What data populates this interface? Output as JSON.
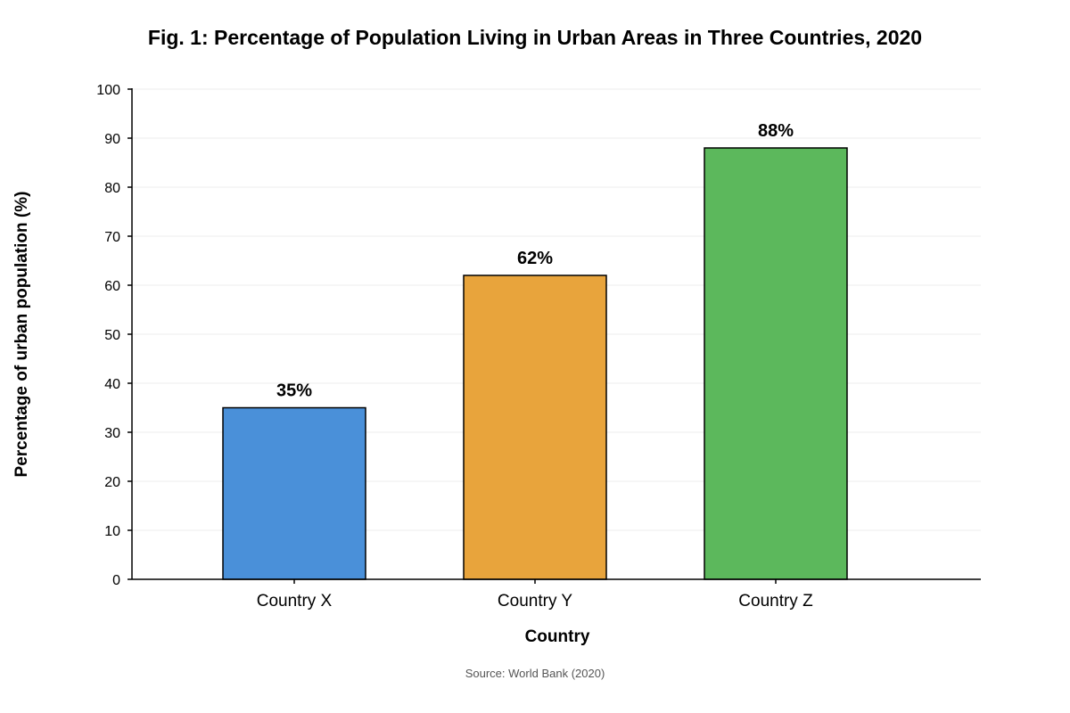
{
  "chart_data": {
    "type": "bar",
    "title": "Fig. 1: Percentage of Population Living in Urban Areas in Three Countries, 2020",
    "xlabel": "Country",
    "ylabel": "Percentage of urban population (%)",
    "categories": [
      "Country X",
      "Country Y",
      "Country Z"
    ],
    "values": [
      35,
      62,
      88
    ],
    "data_labels": [
      "35%",
      "62%",
      "88%"
    ],
    "colors": [
      "#4a90d9",
      "#e8a43c",
      "#5cb85c"
    ],
    "ylim": [
      0,
      100
    ],
    "yticks": [
      "0",
      "10",
      "20",
      "30",
      "40",
      "50",
      "60",
      "70",
      "80",
      "90",
      "100"
    ],
    "grid": true,
    "source": "Source: World Bank (2020)"
  }
}
